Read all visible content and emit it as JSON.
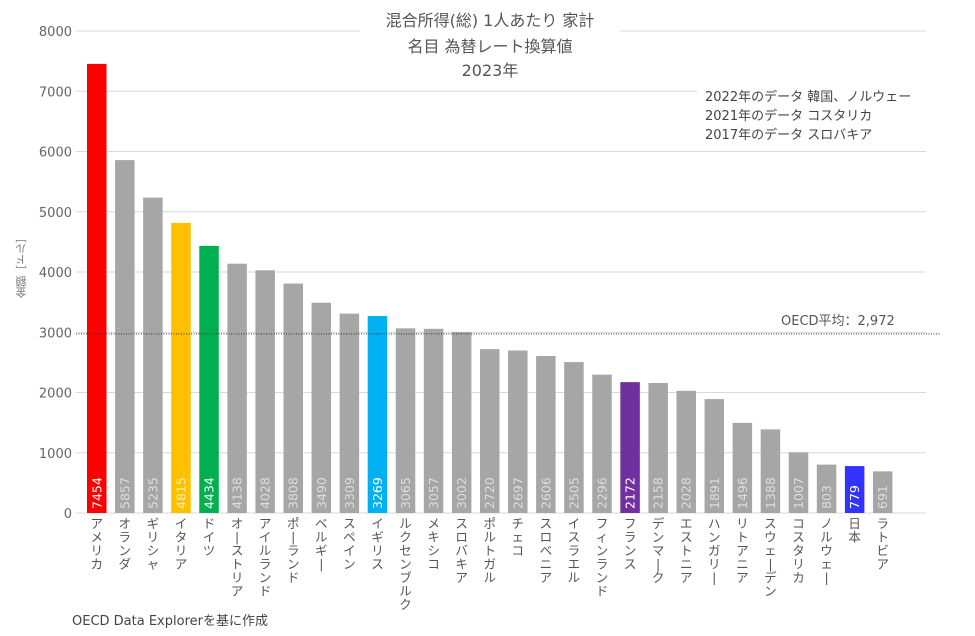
{
  "chart_data": {
    "type": "bar",
    "title_lines": [
      "混合所得(総) 1人あたり 家計",
      "名目 為替レート換算値",
      "2023年"
    ],
    "ylabel": "金額［ドル］",
    "xlabel": "",
    "ylim": [
      0,
      8000
    ],
    "yticks": [
      "0",
      "1000",
      "2000",
      "3000",
      "4000",
      "5000",
      "6000",
      "7000",
      "8000"
    ],
    "grid": true,
    "categories": [
      "アメリカ",
      "オランダ",
      "ギリシャ",
      "イタリア",
      "ドイツ",
      "オーストリア",
      "アイルランド",
      "ポーランド",
      "ベルギー",
      "スペイン",
      "イギリス",
      "ルクセンブルク",
      "メキシコ",
      "スロバキア",
      "ポルトガル",
      "チェコ",
      "スロベニア",
      "イスラエル",
      "フィンランド",
      "フランス",
      "デンマーク",
      "エストニア",
      "ハンガリー",
      "リトアニア",
      "スウェーデン",
      "コスタリカ",
      "ノルウェー",
      "日本",
      "ラトビア"
    ],
    "values": [
      7454,
      5857,
      5235,
      4815,
      4434,
      4138,
      4028,
      3808,
      3490,
      3309,
      3269,
      3065,
      3057,
      3002,
      2720,
      2697,
      2606,
      2505,
      2296,
      2172,
      2158,
      2028,
      1891,
      1496,
      1388,
      1007,
      803,
      779,
      691
    ],
    "bar_colors": [
      "#ff0000",
      "#a6a6a6",
      "#a6a6a6",
      "#ffc000",
      "#00b050",
      "#a6a6a6",
      "#a6a6a6",
      "#a6a6a6",
      "#a6a6a6",
      "#a6a6a6",
      "#00b0f0",
      "#a6a6a6",
      "#a6a6a6",
      "#a6a6a6",
      "#a6a6a6",
      "#a6a6a6",
      "#a6a6a6",
      "#a6a6a6",
      "#a6a6a6",
      "#7030a0",
      "#a6a6a6",
      "#a6a6a6",
      "#a6a6a6",
      "#a6a6a6",
      "#a6a6a6",
      "#a6a6a6",
      "#a6a6a6",
      "#3333ff",
      "#a6a6a6"
    ],
    "label_colors": [
      "#ffffff",
      "#dddddd",
      "#dddddd",
      "#fff0b0",
      "#ffffff",
      "#dddddd",
      "#dddddd",
      "#dddddd",
      "#dddddd",
      "#dddddd",
      "#ffffff",
      "#dddddd",
      "#dddddd",
      "#dddddd",
      "#dddddd",
      "#dddddd",
      "#dddddd",
      "#dddddd",
      "#dddddd",
      "#ffffff",
      "#dddddd",
      "#dddddd",
      "#dddddd",
      "#dddddd",
      "#dddddd",
      "#dddddd",
      "#dddddd",
      "#ffffff",
      "#dddddd"
    ],
    "reference_line": {
      "value": 2972,
      "label": "OECD平均：2,972"
    },
    "annotations": [
      "2022年のデータ 韓国、ノルウェー",
      "2021年のデータ コスタリカ",
      "2017年のデータ スロバキア"
    ],
    "source": "OECD Data Explorerを基に作成"
  }
}
